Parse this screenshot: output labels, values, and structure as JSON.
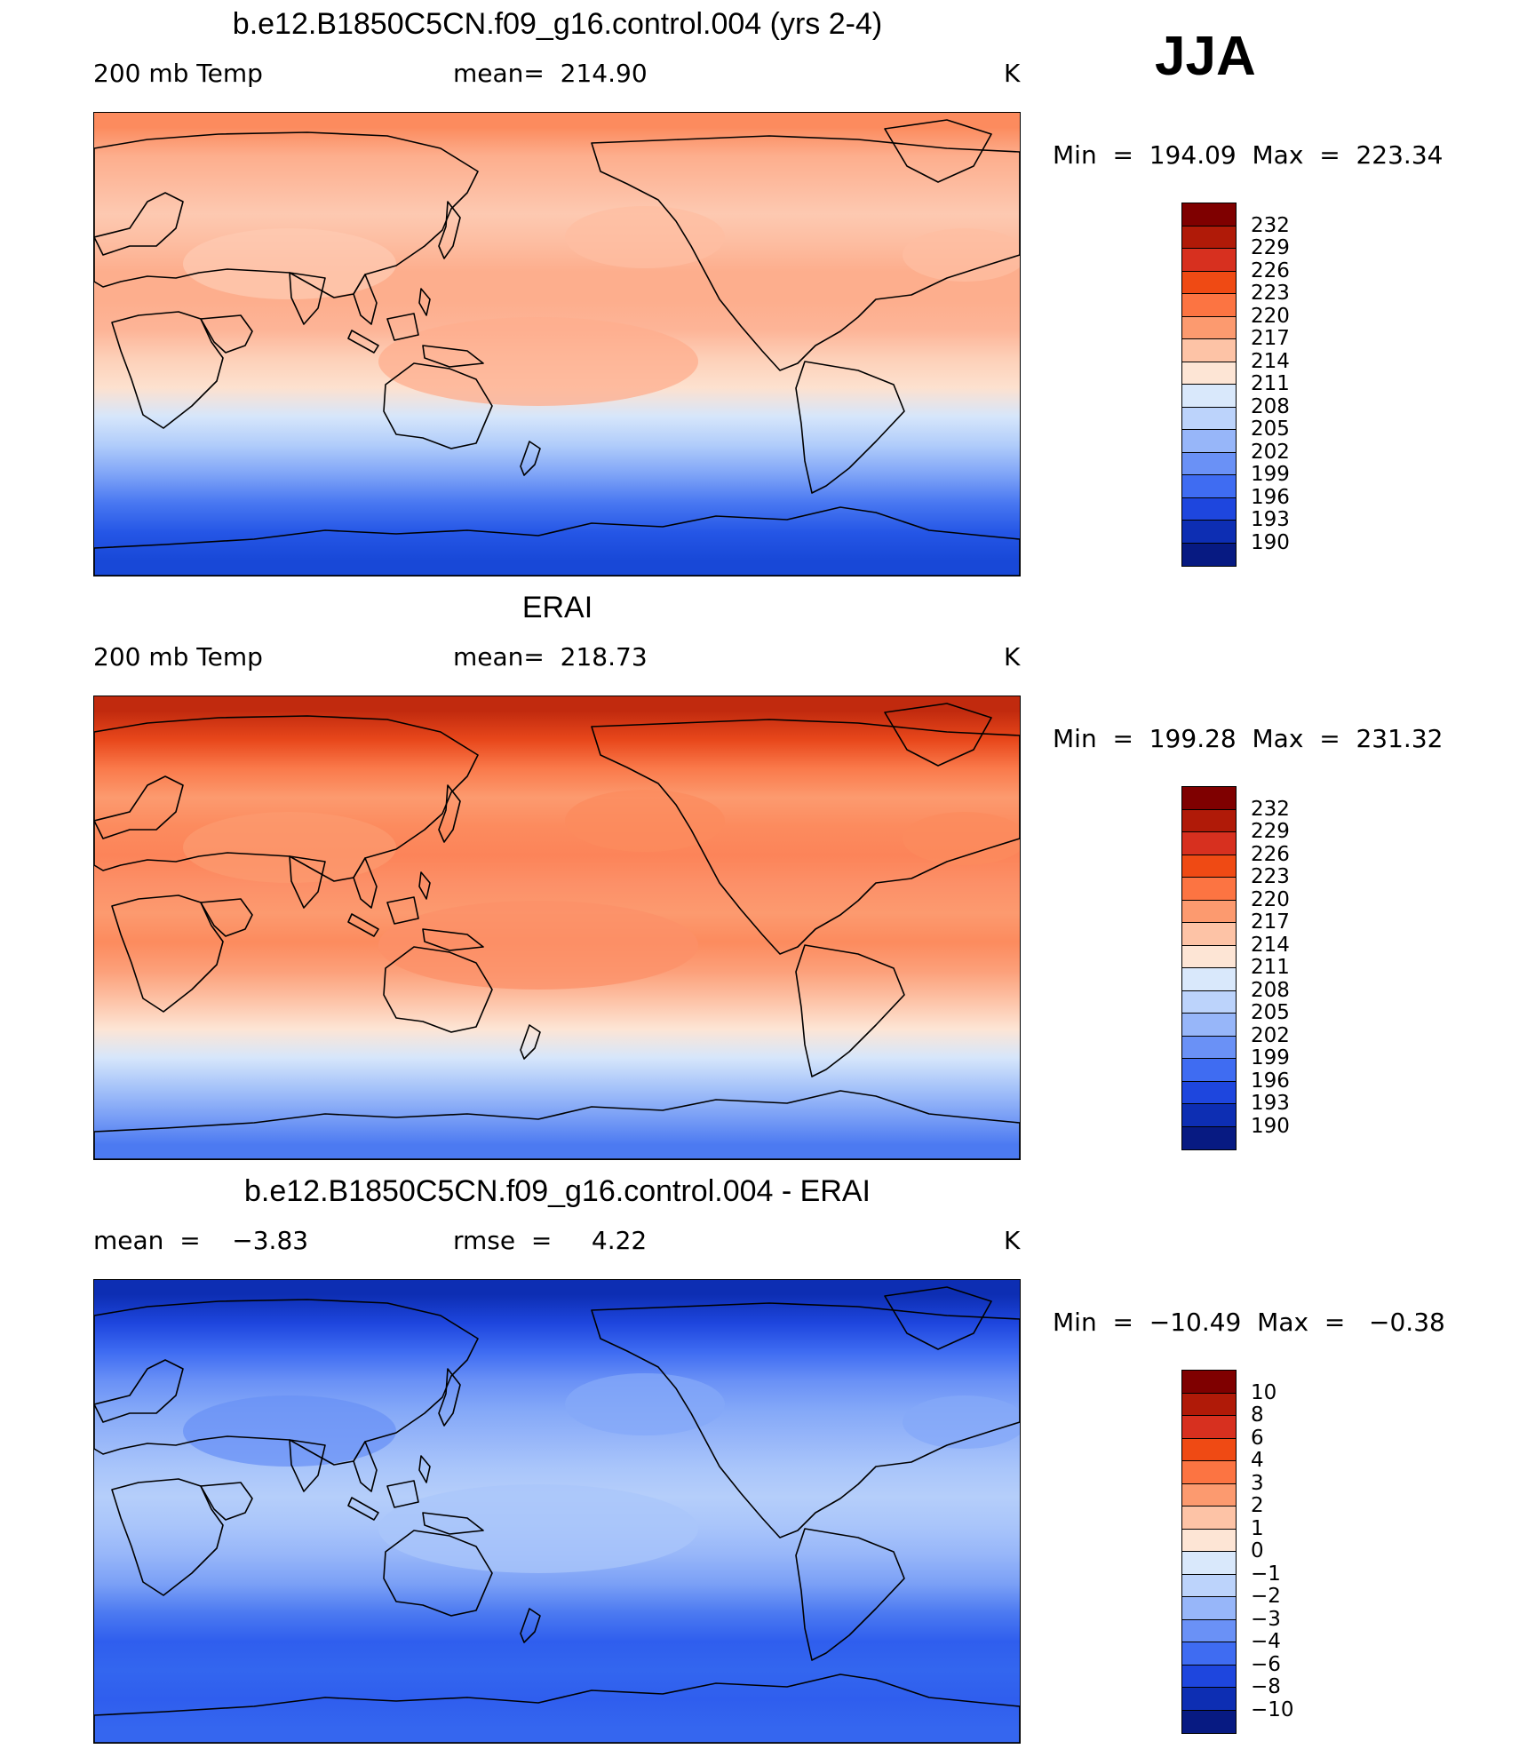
{
  "season_label": "JJA",
  "units": "K",
  "panels": [
    {
      "id": "model",
      "title": "b.e12.B1850C5CN.f09_g16.control.004 (yrs 2-4)",
      "left_header": "200 mb Temp",
      "mid_header": "mean=  214.90",
      "right_header": "K",
      "minmax": "Min  =  194.09  Max  =  223.34",
      "colorbar_labels": [
        "232",
        "229",
        "226",
        "223",
        "220",
        "217",
        "214",
        "211",
        "208",
        "205",
        "202",
        "199",
        "196",
        "193",
        "190"
      ],
      "colorbar_colors": [
        "#7f0000",
        "#b01a08",
        "#d7301f",
        "#ef4a14",
        "#fc7442",
        "#fc9a6f",
        "#fdc3a6",
        "#fde5d5",
        "#d9e8fb",
        "#bcd3fb",
        "#97b6f9",
        "#6a91f6",
        "#3f6cf2",
        "#1e46de",
        "#0d2eb3",
        "#071a82"
      ],
      "bands": [
        "#fc8b5e",
        "#fdae8d",
        "#fdbb9f",
        "#fdc9b1",
        "#fdbda1",
        "#fdae8d",
        "#fdae8d",
        "#fdb497",
        "#fdd0b8",
        "#fde1cf",
        "#d6e6fb",
        "#b0ccfa",
        "#7fa4f7",
        "#4877f1",
        "#2556e6",
        "#1848d7"
      ]
    },
    {
      "id": "obs",
      "title": "ERAI",
      "left_header": "200 mb Temp",
      "mid_header": "mean=  218.73",
      "right_header": "K",
      "minmax": "Min  =  199.28  Max  =  231.32",
      "colorbar_labels": [
        "232",
        "229",
        "226",
        "223",
        "220",
        "217",
        "214",
        "211",
        "208",
        "205",
        "202",
        "199",
        "196",
        "193",
        "190"
      ],
      "colorbar_colors": [
        "#7f0000",
        "#b01a08",
        "#d7301f",
        "#ef4a14",
        "#fc7442",
        "#fc9a6f",
        "#fdc3a6",
        "#fde5d5",
        "#d9e8fb",
        "#bcd3fb",
        "#97b6f9",
        "#6a91f6",
        "#3f6cf2",
        "#1e46de",
        "#0d2eb3",
        "#071a82"
      ],
      "bands": [
        "#c12a0e",
        "#e8471b",
        "#fa7a4b",
        "#fc9a6f",
        "#fc8b5e",
        "#fc8459",
        "#fc9068",
        "#fc9a6f",
        "#fc8b5e",
        "#fca07a",
        "#fdc2a6",
        "#fde5d5",
        "#d6e6fb",
        "#a7c4f9",
        "#7ba0f6",
        "#4c7af1"
      ]
    },
    {
      "id": "diff",
      "title": "b.e12.B1850C5CN.f09_g16.control.004 - ERAI",
      "left_header": "mean  =    −3.83",
      "mid_header": "rmse  =     4.22",
      "right_header": "K",
      "minmax": "Min  =  −10.49  Max  =   −0.38",
      "colorbar_labels": [
        "10",
        "8",
        "6",
        "4",
        "3",
        "2",
        "1",
        "0",
        "−1",
        "−2",
        "−3",
        "−4",
        "−6",
        "−8",
        "−10"
      ],
      "colorbar_colors": [
        "#7f0000",
        "#b01a08",
        "#d7301f",
        "#ef4a14",
        "#fc7442",
        "#fc9a6f",
        "#fdc3a6",
        "#fde5d5",
        "#d9e8fb",
        "#bcd3fb",
        "#97b6f9",
        "#6a91f6",
        "#3f6cf2",
        "#1e46de",
        "#0d2eb3",
        "#071a82"
      ],
      "bands": [
        "#0d2eb3",
        "#1e46de",
        "#3f6cf2",
        "#6a91f6",
        "#84a8f8",
        "#97b6f9",
        "#a9c5fa",
        "#b5cefa",
        "#a9c5fa",
        "#97b6f9",
        "#7ba0f6",
        "#4c7af1",
        "#2f5eee",
        "#3366ef",
        "#2f5eee",
        "#3566ef"
      ]
    }
  ]
}
